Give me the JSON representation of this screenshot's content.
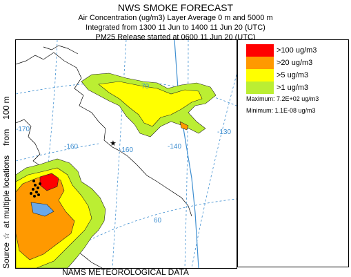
{
  "header": {
    "title": "NWS SMOKE FORECAST",
    "line1": "Air Concentration (ug/m3) Layer Average    0 m and  5000 m",
    "line2": "Integrated from 1300 11 Jun to 1400 11 Jun 20 (UTC)",
    "line3": "PM25 Release started at 0600 11 Jun 20 (UTC)"
  },
  "side_label": {
    "full": "Source ☆ at multiple locations   from   100 m",
    "prefix": "Source",
    "star": "☆",
    "middle": "at multiple locations",
    "from": "from",
    "height": "100 m"
  },
  "legend": {
    "items": [
      {
        "label": ">100 ug/m3",
        "color": "#ff0000"
      },
      {
        "label": ">20 ug/m3",
        "color": "#ff9900"
      },
      {
        "label": ">5 ug/m3",
        "color": "#ffff00"
      },
      {
        "label": ">1 ug/m3",
        "color": "#bbee33"
      }
    ],
    "maximum": "Maximum: 7.2E+02 ug/m3",
    "minimum": "Minimum: 1.1E-08 ug/m3"
  },
  "map": {
    "grid_labels": {
      "lon_170": "-170",
      "lon_160a": "-160",
      "lon_160b": "-160",
      "lon_140": "-140",
      "lon_130": "-130",
      "lat_70": "70",
      "lat_60": "60"
    },
    "grid_color": "#3e8ed0"
  },
  "footer": "NAMS METEOROLOGICAL DATA"
}
